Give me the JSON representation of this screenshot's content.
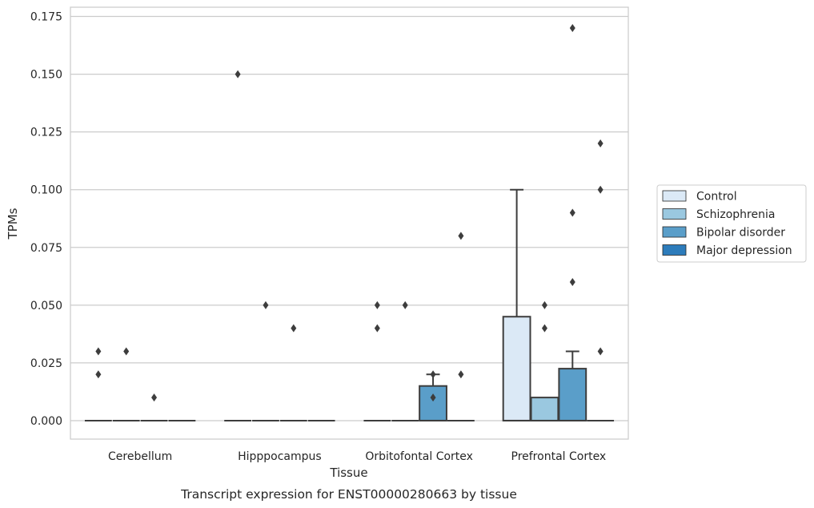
{
  "chart_data": {
    "type": "box",
    "title": "",
    "caption": "Transcript expression for ENST00000280663 by tissue",
    "xlabel": "Tissue",
    "ylabel": "TPMs",
    "ylim": [
      -0.008,
      0.179
    ],
    "yticks": [
      "0.000",
      "0.025",
      "0.050",
      "0.075",
      "0.100",
      "0.125",
      "0.150",
      "0.175"
    ],
    "ytick_values": [
      0,
      0.025,
      0.05,
      0.075,
      0.1,
      0.125,
      0.15,
      0.175
    ],
    "grid": "horizontal",
    "legend_position": "right",
    "categories": [
      "Cerebellum",
      "Hipppocampus",
      "Orbitofontal Cortex",
      "Prefrontal Cortex"
    ],
    "series": [
      {
        "name": "Control",
        "color": "#dbe9f6",
        "boxes": [
          {
            "q1": 0,
            "median": 0,
            "q3": 0,
            "whisker_low": 0,
            "whisker_high": 0,
            "outliers": [
              0.03,
              0.02
            ]
          },
          {
            "q1": 0,
            "median": 0,
            "q3": 0,
            "whisker_low": 0,
            "whisker_high": 0,
            "outliers": [
              0.15
            ]
          },
          {
            "q1": 0,
            "median": 0,
            "q3": 0,
            "whisker_low": 0,
            "whisker_high": 0,
            "outliers": [
              0.05,
              0.04
            ]
          },
          {
            "q1": 0,
            "median": 0,
            "q3": 0.045,
            "whisker_low": 0,
            "whisker_high": 0.1,
            "outliers": []
          }
        ]
      },
      {
        "name": "Schizophrenia",
        "color": "#9ac8e0",
        "boxes": [
          {
            "q1": 0,
            "median": 0,
            "q3": 0,
            "whisker_low": 0,
            "whisker_high": 0,
            "outliers": [
              0.03
            ]
          },
          {
            "q1": 0,
            "median": 0,
            "q3": 0,
            "whisker_low": 0,
            "whisker_high": 0,
            "outliers": [
              0.05
            ]
          },
          {
            "q1": 0,
            "median": 0,
            "q3": 0,
            "whisker_low": 0,
            "whisker_high": 0,
            "outliers": [
              0.05
            ]
          },
          {
            "q1": 0,
            "median": 0,
            "q3": 0.01,
            "whisker_low": 0,
            "whisker_high": 0.01,
            "outliers": [
              0.05,
              0.04
            ]
          }
        ]
      },
      {
        "name": "Bipolar disorder",
        "color": "#5a9ec9",
        "boxes": [
          {
            "q1": 0,
            "median": 0,
            "q3": 0,
            "whisker_low": 0,
            "whisker_high": 0,
            "outliers": [
              0.01
            ]
          },
          {
            "q1": 0,
            "median": 0,
            "q3": 0,
            "whisker_low": 0,
            "whisker_high": 0,
            "outliers": [
              0.04
            ]
          },
          {
            "q1": 0,
            "median": 0,
            "q3": 0.015,
            "whisker_low": 0,
            "whisker_high": 0.02,
            "outliers": [
              0.02,
              0.01
            ]
          },
          {
            "q1": 0,
            "median": 0,
            "q3": 0.0225,
            "whisker_low": 0,
            "whisker_high": 0.03,
            "outliers": [
              0.17,
              0.09,
              0.06
            ]
          }
        ]
      },
      {
        "name": "Major depression",
        "color": "#2d7cbb",
        "boxes": [
          {
            "q1": 0,
            "median": 0,
            "q3": 0,
            "whisker_low": 0,
            "whisker_high": 0,
            "outliers": []
          },
          {
            "q1": 0,
            "median": 0,
            "q3": 0,
            "whisker_low": 0,
            "whisker_high": 0,
            "outliers": []
          },
          {
            "q1": 0,
            "median": 0,
            "q3": 0,
            "whisker_low": 0,
            "whisker_high": 0,
            "outliers": [
              0.08,
              0.02
            ]
          },
          {
            "q1": 0,
            "median": 0,
            "q3": 0,
            "whisker_low": 0,
            "whisker_high": 0,
            "outliers": [
              0.12,
              0.1,
              0.03
            ]
          }
        ]
      }
    ]
  }
}
